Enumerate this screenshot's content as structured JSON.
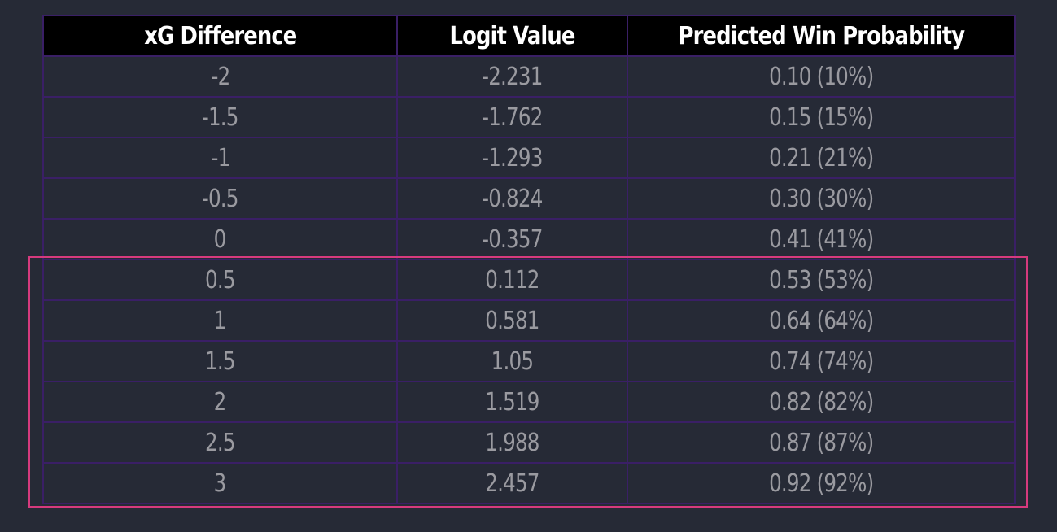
{
  "chart_data": {
    "type": "table",
    "columns": [
      "xG Difference",
      "Logit Value",
      "Predicted Win Probability"
    ],
    "rows": [
      [
        "-2",
        "-2.231",
        "0.10 (10%)"
      ],
      [
        "-1.5",
        "-1.762",
        "0.15 (15%)"
      ],
      [
        "-1",
        "-1.293",
        "0.21 (21%)"
      ],
      [
        "-0.5",
        "-0.824",
        "0.30 (30%)"
      ],
      [
        "0",
        "-0.357",
        "0.41 (41%)"
      ],
      [
        "0.5",
        "0.112",
        "0.53 (53%)"
      ],
      [
        "1",
        "0.581",
        "0.64 (64%)"
      ],
      [
        "1.5",
        "1.05",
        "0.74 (74%)"
      ],
      [
        "2",
        "1.519",
        "0.82 (82%)"
      ],
      [
        "2.5",
        "1.988",
        "0.87 (87%)"
      ],
      [
        "3",
        "2.457",
        "0.92 (92%)"
      ]
    ],
    "highlighted_rows": [
      "0.5",
      "1",
      "1.5",
      "2",
      "2.5",
      "3"
    ]
  },
  "colors": {
    "background": "#262a36",
    "header_background": "#000000",
    "header_text": "#ffffff",
    "cell_text": "#9a9aa0",
    "grid_lines": "#3a1f66",
    "highlight_border": "#d63a7e"
  }
}
